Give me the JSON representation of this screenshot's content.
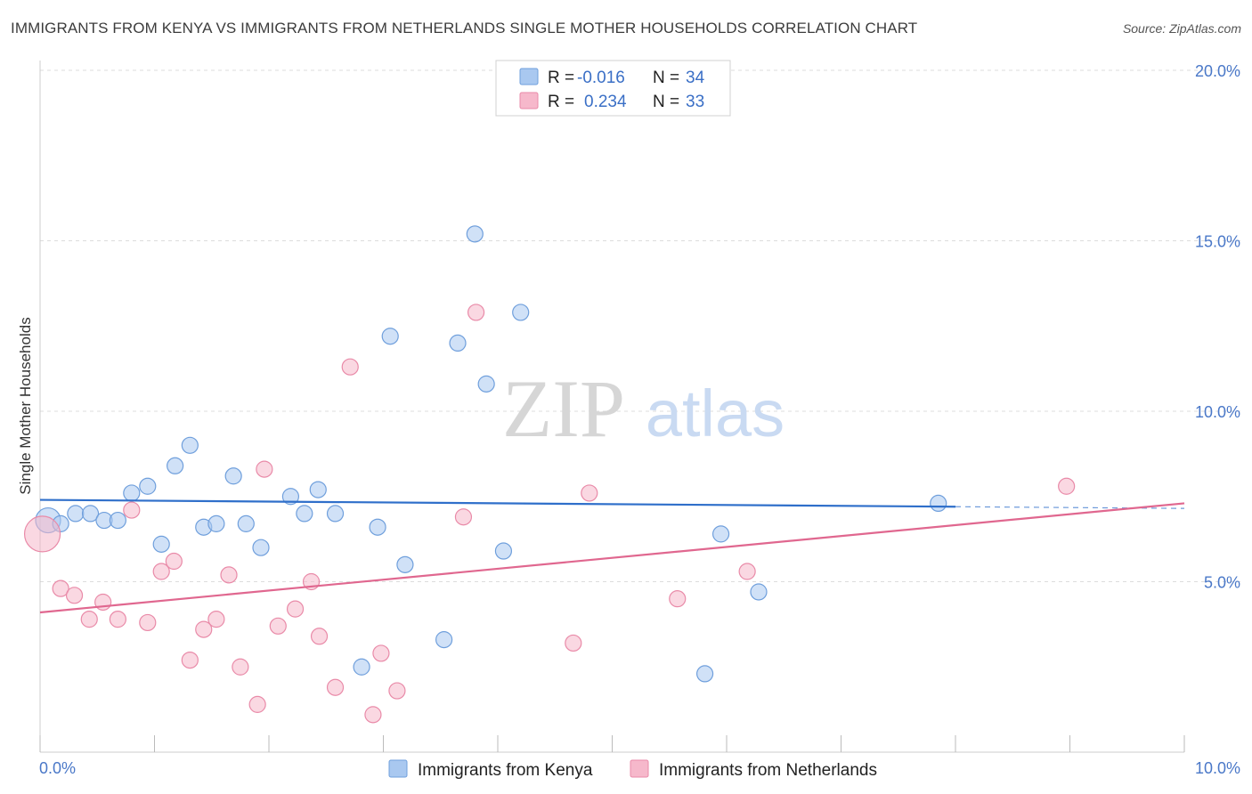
{
  "title": "IMMIGRANTS FROM KENYA VS IMMIGRANTS FROM NETHERLANDS SINGLE MOTHER HOUSEHOLDS CORRELATION CHART",
  "source": "Source: ZipAtlas.com",
  "watermark": {
    "zip": "ZIP",
    "atlas": "atlas"
  },
  "colors": {
    "kenya_fill": "#a9c8f0",
    "kenya_stroke": "#6f9fdc",
    "kenya_line": "#2f6fca",
    "neth_fill": "#f6b8cb",
    "neth_stroke": "#e98aa8",
    "neth_line": "#e0678f",
    "tick_label": "#4a78c8",
    "grid": "#dcdcdc"
  },
  "legend": {
    "rows": [
      {
        "r_label": "R =",
        "r_value": "-0.016",
        "n_label": "N =",
        "n_value": "34"
      },
      {
        "r_label": "R =",
        "r_value": "0.234",
        "n_label": "N =",
        "n_value": "33"
      }
    ]
  },
  "chart_data": {
    "type": "scatter",
    "ylabel": "Single Mother Households",
    "xlim": [
      0,
      10
    ],
    "ylim": [
      0,
      20
    ],
    "x_ticks": [
      "0.0%",
      "10.0%"
    ],
    "y_ticks": [
      {
        "value": 5,
        "label": "5.0%"
      },
      {
        "value": 10,
        "label": "10.0%"
      },
      {
        "value": 15,
        "label": "15.0%"
      },
      {
        "value": 20,
        "label": "20.0%"
      }
    ],
    "grid": "horizontal dashed",
    "series": [
      {
        "name": "Immigrants from Kenya",
        "color_key": "kenya",
        "points": [
          [
            0.07,
            6.8,
            14
          ],
          [
            0.18,
            6.7,
            9
          ],
          [
            0.31,
            7.0,
            9
          ],
          [
            0.44,
            7.0,
            9
          ],
          [
            0.56,
            6.8,
            9
          ],
          [
            0.68,
            6.8,
            9
          ],
          [
            0.8,
            7.6,
            9
          ],
          [
            0.94,
            7.8,
            9
          ],
          [
            1.06,
            6.1,
            9
          ],
          [
            1.18,
            8.4,
            9
          ],
          [
            1.31,
            9.0,
            9
          ],
          [
            1.43,
            6.6,
            9
          ],
          [
            1.54,
            6.7,
            9
          ],
          [
            1.69,
            8.1,
            9
          ],
          [
            1.8,
            6.7,
            9
          ],
          [
            1.93,
            6.0,
            9
          ],
          [
            2.19,
            7.5,
            9
          ],
          [
            2.31,
            7.0,
            9
          ],
          [
            2.43,
            7.7,
            9
          ],
          [
            2.58,
            7.0,
            9
          ],
          [
            2.81,
            2.5,
            9
          ],
          [
            2.95,
            6.6,
            9
          ],
          [
            3.06,
            12.2,
            9
          ],
          [
            3.19,
            5.5,
            9
          ],
          [
            3.53,
            3.3,
            9
          ],
          [
            3.65,
            12.0,
            9
          ],
          [
            3.8,
            15.2,
            9
          ],
          [
            3.9,
            10.8,
            9
          ],
          [
            4.05,
            5.9,
            9
          ],
          [
            4.2,
            12.9,
            9
          ],
          [
            5.81,
            2.3,
            9
          ],
          [
            5.95,
            6.4,
            9
          ],
          [
            6.28,
            4.7,
            9
          ],
          [
            7.85,
            7.3,
            9
          ]
        ],
        "trend": {
          "x0": 0,
          "y0": 7.4,
          "x1": 8.0,
          "y1": 7.2,
          "dash_x1": 10,
          "dash_y1": 7.15
        }
      },
      {
        "name": "Immigrants from Netherlands",
        "color_key": "neth",
        "points": [
          [
            0.02,
            6.4,
            20
          ],
          [
            0.18,
            4.8,
            9
          ],
          [
            0.3,
            4.6,
            9
          ],
          [
            0.43,
            3.9,
            9
          ],
          [
            0.55,
            4.4,
            9
          ],
          [
            0.68,
            3.9,
            9
          ],
          [
            0.8,
            7.1,
            9
          ],
          [
            0.94,
            3.8,
            9
          ],
          [
            1.06,
            5.3,
            9
          ],
          [
            1.17,
            5.6,
            9
          ],
          [
            1.31,
            2.7,
            9
          ],
          [
            1.43,
            3.6,
            9
          ],
          [
            1.54,
            3.9,
            9
          ],
          [
            1.65,
            5.2,
            9
          ],
          [
            1.75,
            2.5,
            9
          ],
          [
            1.9,
            1.4,
            9
          ],
          [
            1.96,
            8.3,
            9
          ],
          [
            2.08,
            3.7,
            9
          ],
          [
            2.23,
            4.2,
            9
          ],
          [
            2.37,
            5.0,
            9
          ],
          [
            2.44,
            3.4,
            9
          ],
          [
            2.58,
            1.9,
            9
          ],
          [
            2.71,
            11.3,
            9
          ],
          [
            2.91,
            1.1,
            9
          ],
          [
            2.98,
            2.9,
            9
          ],
          [
            3.12,
            1.8,
            9
          ],
          [
            3.7,
            6.9,
            9
          ],
          [
            3.81,
            12.9,
            9
          ],
          [
            4.66,
            3.2,
            9
          ],
          [
            4.8,
            7.6,
            9
          ],
          [
            5.57,
            4.5,
            9
          ],
          [
            6.18,
            5.3,
            9
          ],
          [
            8.97,
            7.8,
            9
          ]
        ],
        "trend": {
          "x0": 0,
          "y0": 4.1,
          "x1": 10,
          "y1": 7.3
        }
      }
    ],
    "bottom_legend": [
      "Immigrants from Kenya",
      "Immigrants from Netherlands"
    ]
  }
}
